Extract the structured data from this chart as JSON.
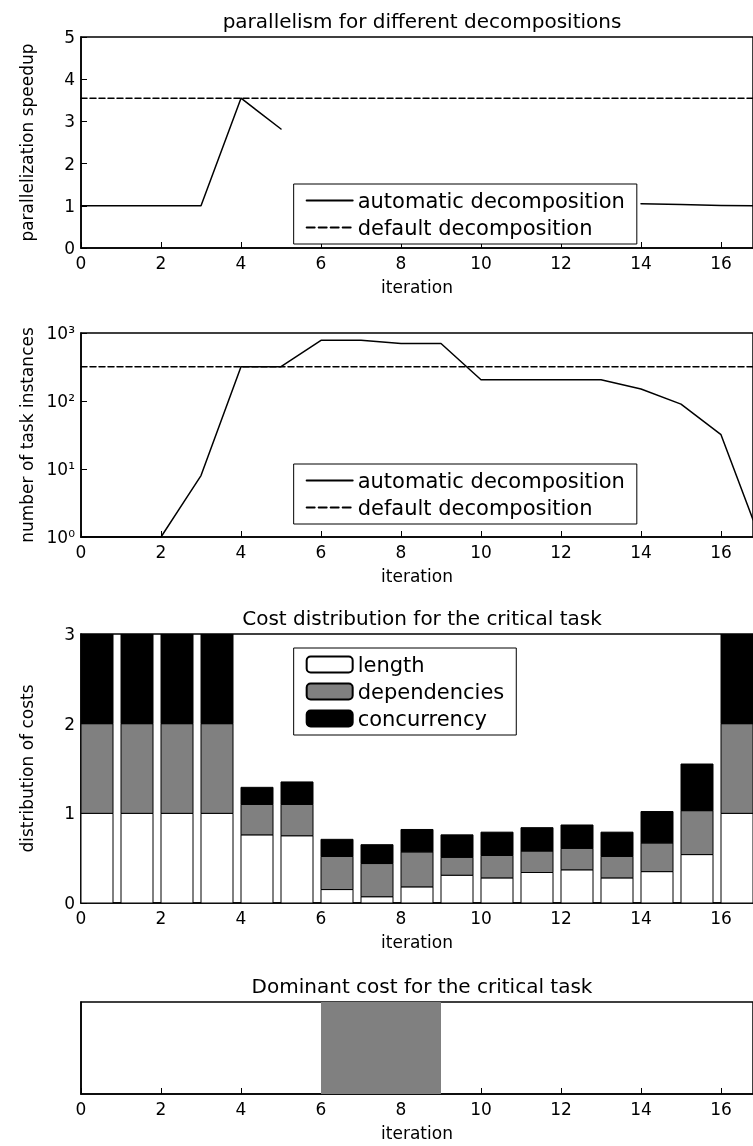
{
  "chart_data": [
    {
      "type": "line",
      "title": "parallelism for different decompositions",
      "xlabel": "iteration",
      "ylabel": "parallelization speedup",
      "xlim": [
        0,
        16.8
      ],
      "xticks": [
        0,
        2,
        4,
        6,
        8,
        10,
        12,
        14,
        16
      ],
      "ylim": [
        0,
        5
      ],
      "yticks": [
        0,
        1,
        2,
        3,
        4,
        5
      ],
      "legend": "bottom",
      "series": [
        {
          "name": "automatic decomposition",
          "color": "#000000",
          "line_style": "solid",
          "x": [
            0,
            1,
            2,
            3,
            4,
            5,
            6,
            7,
            8,
            9,
            10,
            11,
            12,
            13,
            14,
            15,
            16,
            16.8
          ],
          "values": [
            1,
            1,
            1,
            1,
            3.55,
            2.82,
            null,
            null,
            null,
            null,
            null,
            null,
            null,
            null,
            1.05,
            1.03,
            1.01,
            1.0
          ]
        },
        {
          "name": "default decomposition",
          "color": "#000000",
          "line_style": "dashed",
          "x": [
            0,
            16.8
          ],
          "values": [
            3.55,
            3.55
          ]
        }
      ]
    },
    {
      "type": "line",
      "xlabel": "iteration",
      "ylabel": "number of task instances",
      "log": "y",
      "xlim": [
        0,
        16.8
      ],
      "xticks": [
        0,
        2,
        4,
        6,
        8,
        10,
        12,
        14,
        16
      ],
      "ylim": [
        1,
        1000
      ],
      "yticks": [
        {
          "value": 1,
          "label": "10⁰"
        },
        {
          "value": 10,
          "label": "10¹"
        },
        {
          "value": 100,
          "label": "10²"
        },
        {
          "value": 1000,
          "label": "10³"
        }
      ],
      "legend": "bottom",
      "series": [
        {
          "name": "automatic decomposition",
          "color": "#000000",
          "line_style": "solid",
          "x": [
            0,
            1,
            2,
            3,
            4,
            5,
            6,
            7,
            8,
            9,
            10,
            11,
            12,
            13,
            14,
            15,
            16,
            16.8
          ],
          "values": [
            1,
            1,
            1,
            8,
            320,
            320,
            780,
            780,
            700,
            700,
            205,
            205,
            205,
            205,
            150,
            90,
            32,
            1.8
          ]
        },
        {
          "name": "default decomposition",
          "color": "#000000",
          "line_style": "dashed",
          "x": [
            0,
            16.8
          ],
          "values": [
            320,
            320
          ]
        }
      ]
    },
    {
      "type": "bar",
      "stacked": true,
      "title": "Cost distribution for the critical task",
      "xlabel": "iteration",
      "ylabel": "distribution of costs",
      "xlim": [
        0,
        16.8
      ],
      "xticks": [
        0,
        2,
        4,
        6,
        8,
        10,
        12,
        14,
        16
      ],
      "ylim": [
        0,
        3
      ],
      "yticks": [
        0,
        1,
        2,
        3
      ],
      "legend": "top",
      "x": [
        0.4,
        1.4,
        2.4,
        3.4,
        4.4,
        5.4,
        6.4,
        7.4,
        8.4,
        9.4,
        10.4,
        11.4,
        12.4,
        13.4,
        14.4,
        15.4,
        16.4
      ],
      "series": [
        {
          "name": "length",
          "color": "#ffffff",
          "values": [
            1,
            1,
            1,
            1,
            0.76,
            0.75,
            0.15,
            0.07,
            0.18,
            0.31,
            0.28,
            0.34,
            0.37,
            0.28,
            0.35,
            0.54,
            1
          ]
        },
        {
          "name": "dependencies",
          "color": "#808080",
          "values": [
            1,
            1,
            1,
            1,
            0.34,
            0.35,
            0.37,
            0.37,
            0.39,
            0.2,
            0.25,
            0.24,
            0.24,
            0.24,
            0.32,
            0.49,
            1
          ]
        },
        {
          "name": "concurrency",
          "color": "#000000",
          "values": [
            1,
            1,
            1,
            1,
            0.19,
            0.25,
            0.19,
            0.21,
            0.25,
            0.25,
            0.26,
            0.26,
            0.26,
            0.27,
            0.35,
            0.52,
            1
          ]
        }
      ]
    },
    {
      "type": "bar",
      "orientation": "horizontal",
      "title": "Dominant cost for the critical task",
      "xlabel": "iteration",
      "xlim": [
        0,
        16.8
      ],
      "xticks": [
        0,
        2,
        4,
        6,
        8,
        10,
        12,
        14,
        16
      ],
      "tick_labels": "x",
      "categories": [
        null
      ],
      "base": [
        6
      ],
      "values": [
        3
      ],
      "color": "#808080"
    }
  ]
}
